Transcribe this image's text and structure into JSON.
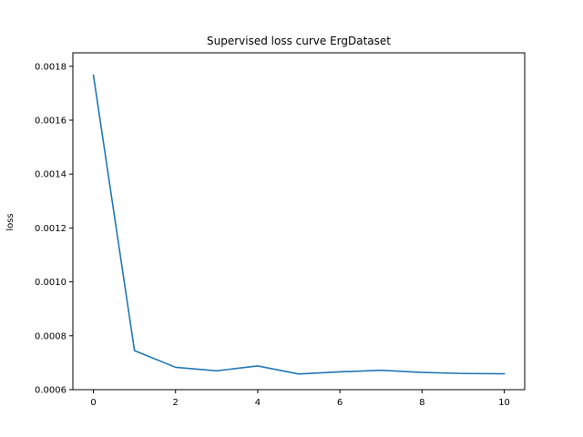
{
  "chart_data": {
    "type": "line",
    "title": "Supervised loss curve ErgDataset",
    "xlabel": "",
    "ylabel": "loss",
    "xlim": [
      -0.5,
      10.5
    ],
    "ylim": [
      0.0006,
      0.00185
    ],
    "xticks": [
      0,
      2,
      4,
      6,
      8,
      10
    ],
    "xtick_labels": [
      "0",
      "2",
      "4",
      "6",
      "8",
      "10"
    ],
    "yticks": [
      0.0006,
      0.0008,
      0.001,
      0.0012,
      0.0014,
      0.0016,
      0.0018
    ],
    "ytick_labels": [
      "0.0006",
      "0.0008",
      "0.0010",
      "0.0012",
      "0.0014",
      "0.0016",
      "0.0018"
    ],
    "grid": false,
    "series": [
      {
        "color": "#1f77b4",
        "x": [
          0,
          1,
          2,
          3,
          4,
          5,
          6,
          7,
          8,
          9,
          10
        ],
        "y": [
          0.001767,
          0.000745,
          0.000683,
          0.00067,
          0.000688,
          0.000658,
          0.000666,
          0.000672,
          0.000664,
          0.00066,
          0.000659
        ]
      }
    ]
  }
}
